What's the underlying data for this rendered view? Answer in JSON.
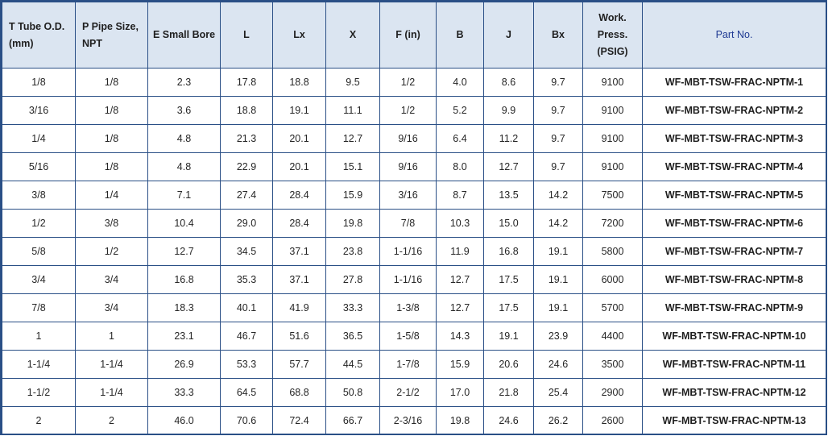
{
  "table": {
    "headers": [
      {
        "key": "t",
        "lines": [
          "T Tube O.D.",
          "(mm)"
        ]
      },
      {
        "key": "p",
        "lines": [
          "P Pipe Size,",
          "NPT"
        ]
      },
      {
        "key": "e",
        "lines": [
          "E Small Bore"
        ]
      },
      {
        "key": "l",
        "lines": [
          "L"
        ]
      },
      {
        "key": "lx",
        "lines": [
          "Lx"
        ]
      },
      {
        "key": "x",
        "lines": [
          "X"
        ]
      },
      {
        "key": "f",
        "lines": [
          "F (in)"
        ]
      },
      {
        "key": "b",
        "lines": [
          "B"
        ]
      },
      {
        "key": "j",
        "lines": [
          "J"
        ]
      },
      {
        "key": "bx",
        "lines": [
          "Bx"
        ]
      },
      {
        "key": "work",
        "lines": [
          "Work.",
          "Press.",
          "(PSIG)"
        ]
      },
      {
        "key": "part",
        "lines": [
          "Part No."
        ]
      }
    ],
    "rows": [
      [
        "1/8",
        "1/8",
        "2.3",
        "17.8",
        "18.8",
        "9.5",
        "1/2",
        "4.0",
        "8.6",
        "9.7",
        "9100",
        "WF-MBT-TSW-FRAC-NPTM-1"
      ],
      [
        "3/16",
        "1/8",
        "3.6",
        "18.8",
        "19.1",
        "11.1",
        "1/2",
        "5.2",
        "9.9",
        "9.7",
        "9100",
        "WF-MBT-TSW-FRAC-NPTM-2"
      ],
      [
        "1/4",
        "1/8",
        "4.8",
        "21.3",
        "20.1",
        "12.7",
        "9/16",
        "6.4",
        "11.2",
        "9.7",
        "9100",
        "WF-MBT-TSW-FRAC-NPTM-3"
      ],
      [
        "5/16",
        "1/8",
        "4.8",
        "22.9",
        "20.1",
        "15.1",
        "9/16",
        "8.0",
        "12.7",
        "9.7",
        "9100",
        "WF-MBT-TSW-FRAC-NPTM-4"
      ],
      [
        "3/8",
        "1/4",
        "7.1",
        "27.4",
        "28.4",
        "15.9",
        "3/16",
        "8.7",
        "13.5",
        "14.2",
        "7500",
        "WF-MBT-TSW-FRAC-NPTM-5"
      ],
      [
        "1/2",
        "3/8",
        "10.4",
        "29.0",
        "28.4",
        "19.8",
        "7/8",
        "10.3",
        "15.0",
        "14.2",
        "7200",
        "WF-MBT-TSW-FRAC-NPTM-6"
      ],
      [
        "5/8",
        "1/2",
        "12.7",
        "34.5",
        "37.1",
        "23.8",
        "1-1/16",
        "11.9",
        "16.8",
        "19.1",
        "5800",
        "WF-MBT-TSW-FRAC-NPTM-7"
      ],
      [
        "3/4",
        "3/4",
        "16.8",
        "35.3",
        "37.1",
        "27.8",
        "1-1/16",
        "12.7",
        "17.5",
        "19.1",
        "6000",
        "WF-MBT-TSW-FRAC-NPTM-8"
      ],
      [
        "7/8",
        "3/4",
        "18.3",
        "40.1",
        "41.9",
        "33.3",
        "1-3/8",
        "12.7",
        "17.5",
        "19.1",
        "5700",
        "WF-MBT-TSW-FRAC-NPTM-9"
      ],
      [
        "1",
        "1",
        "23.1",
        "46.7",
        "51.6",
        "36.5",
        "1-5/8",
        "14.3",
        "19.1",
        "23.9",
        "4400",
        "WF-MBT-TSW-FRAC-NPTM-10"
      ],
      [
        "1-1/4",
        "1-1/4",
        "26.9",
        "53.3",
        "57.7",
        "44.5",
        "1-7/8",
        "15.9",
        "20.6",
        "24.6",
        "3500",
        "WF-MBT-TSW-FRAC-NPTM-11"
      ],
      [
        "1-1/2",
        "1-1/4",
        "33.3",
        "64.5",
        "68.8",
        "50.8",
        "2-1/2",
        "17.0",
        "21.8",
        "25.4",
        "2900",
        "WF-MBT-TSW-FRAC-NPTM-12"
      ],
      [
        "2",
        "2",
        "46.0",
        "70.6",
        "72.4",
        "66.7",
        "2-3/16",
        "19.8",
        "24.6",
        "26.2",
        "2600",
        "WF-MBT-TSW-FRAC-NPTM-13"
      ]
    ]
  },
  "colors": {
    "header_background": "#dbe5f1",
    "border": "#2a4f86",
    "part_header_text": "#1f3a93"
  }
}
